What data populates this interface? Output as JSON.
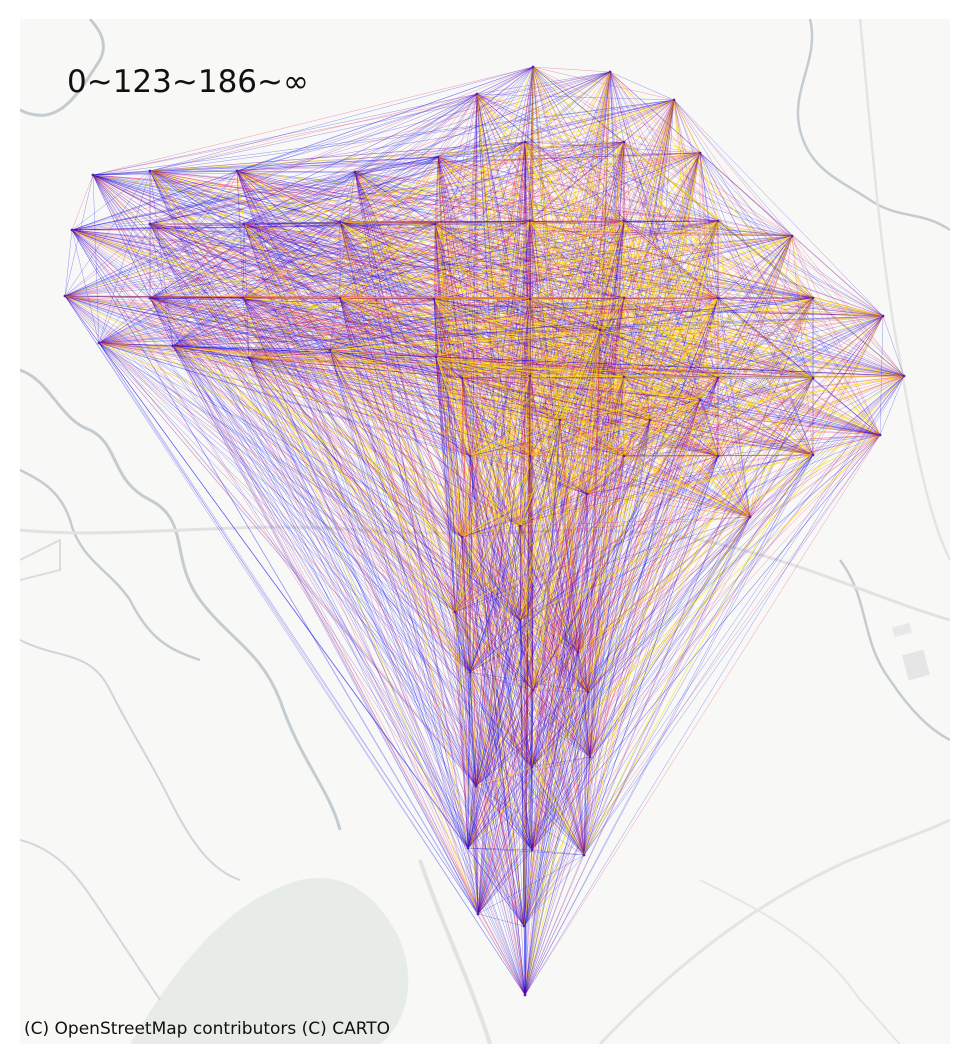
{
  "legend": {
    "title": "0~123~186~∞",
    "bins": [
      {
        "range": "0–123",
        "color": "#0000ee"
      },
      {
        "range": "123–186",
        "color": "#dd1155"
      },
      {
        "range": "186–∞",
        "color": "#ffdd00"
      }
    ]
  },
  "attribution": "(C) OpenStreetMap contributors (C) CARTO",
  "basemap": {
    "background": "#f8f8f6",
    "water_color": "#c4ccd0",
    "road_color": "#e2e2e2",
    "park_color": "#e8ece6"
  }
}
